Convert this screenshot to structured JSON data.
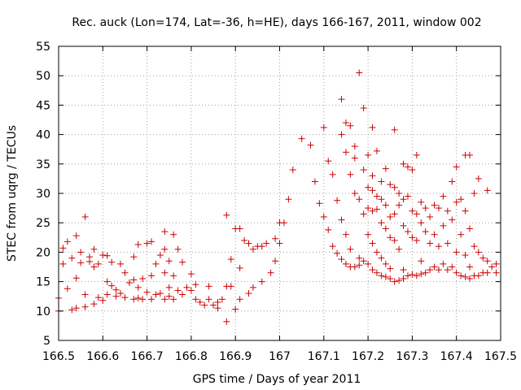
{
  "chart_data": {
    "type": "scatter",
    "title": "Rec. auck (Lon=174, Lat=-36, h=HE), days 166-167, 2011, window 002",
    "xlabel": "GPS time / Days of year 2011",
    "ylabel": "STEC from uqrg / TECUs",
    "xlim": [
      166.5,
      167.5
    ],
    "ylim": [
      5,
      55
    ],
    "xticks": [
      "166.5",
      "166.6",
      "166.7",
      "166.8",
      "166.9",
      "167",
      "167.1",
      "167.2",
      "167.3",
      "167.4",
      "167.5"
    ],
    "yticks": [
      "5",
      "10",
      "15",
      "20",
      "25",
      "30",
      "35",
      "40",
      "45",
      "50",
      "55"
    ],
    "grid": true,
    "marker": "+",
    "color": "#cc0000",
    "points": [
      [
        166.5,
        12.2
      ],
      [
        166.5,
        10.0
      ],
      [
        166.51,
        18.0
      ],
      [
        166.51,
        20.7
      ],
      [
        166.52,
        13.8
      ],
      [
        166.52,
        21.8
      ],
      [
        166.53,
        19.0
      ],
      [
        166.53,
        10.2
      ],
      [
        166.54,
        22.8
      ],
      [
        166.54,
        15.6
      ],
      [
        166.54,
        10.5
      ],
      [
        166.55,
        18.2
      ],
      [
        166.55,
        20.0
      ],
      [
        166.56,
        26.0
      ],
      [
        166.56,
        12.8
      ],
      [
        166.56,
        10.7
      ],
      [
        166.57,
        18.4
      ],
      [
        166.57,
        19.2
      ],
      [
        166.58,
        20.5
      ],
      [
        166.58,
        17.5
      ],
      [
        166.58,
        11.2
      ],
      [
        166.59,
        12.3
      ],
      [
        166.59,
        18.0
      ],
      [
        166.6,
        19.5
      ],
      [
        166.6,
        11.8
      ],
      [
        166.61,
        19.4
      ],
      [
        166.61,
        15.0
      ],
      [
        166.61,
        12.8
      ],
      [
        166.62,
        18.3
      ],
      [
        166.62,
        14.3
      ],
      [
        166.63,
        13.6
      ],
      [
        166.63,
        12.5
      ],
      [
        166.64,
        18.0
      ],
      [
        166.64,
        13.0
      ],
      [
        166.65,
        16.5
      ],
      [
        166.65,
        12.3
      ],
      [
        166.66,
        14.8
      ],
      [
        166.67,
        19.2
      ],
      [
        166.67,
        12.0
      ],
      [
        166.67,
        15.3
      ],
      [
        166.68,
        21.3
      ],
      [
        166.68,
        14.0
      ],
      [
        166.68,
        12.2
      ],
      [
        166.69,
        15.5
      ],
      [
        166.69,
        12.0
      ],
      [
        166.7,
        21.5
      ],
      [
        166.7,
        13.2
      ],
      [
        166.71,
        21.8
      ],
      [
        166.71,
        16.0
      ],
      [
        166.71,
        12.0
      ],
      [
        166.72,
        18.0
      ],
      [
        166.72,
        12.8
      ],
      [
        166.73,
        19.5
      ],
      [
        166.73,
        13.0
      ],
      [
        166.74,
        20.5
      ],
      [
        166.74,
        23.5
      ],
      [
        166.74,
        16.5
      ],
      [
        166.74,
        12.0
      ],
      [
        166.75,
        18.5
      ],
      [
        166.75,
        14.0
      ],
      [
        166.75,
        12.5
      ],
      [
        166.76,
        23.0
      ],
      [
        166.76,
        16.0
      ],
      [
        166.76,
        12.0
      ],
      [
        166.77,
        20.5
      ],
      [
        166.77,
        13.5
      ],
      [
        166.78,
        18.3
      ],
      [
        166.78,
        12.8
      ],
      [
        166.79,
        14.0
      ],
      [
        166.8,
        16.3
      ],
      [
        166.8,
        13.5
      ],
      [
        166.81,
        14.5
      ],
      [
        166.81,
        12.0
      ],
      [
        166.82,
        11.5
      ],
      [
        166.83,
        11.0
      ],
      [
        166.84,
        14.2
      ],
      [
        166.84,
        12.0
      ],
      [
        166.85,
        11.0
      ],
      [
        166.86,
        10.5
      ],
      [
        166.86,
        11.5
      ],
      [
        166.87,
        12.0
      ],
      [
        166.88,
        8.2
      ],
      [
        166.88,
        26.3
      ],
      [
        166.88,
        14.2
      ],
      [
        166.89,
        14.2
      ],
      [
        166.89,
        18.8
      ],
      [
        166.9,
        24.0
      ],
      [
        166.9,
        10.3
      ],
      [
        166.91,
        24.0
      ],
      [
        166.91,
        17.3
      ],
      [
        166.91,
        12.0
      ],
      [
        166.92,
        22.0
      ],
      [
        166.93,
        21.5
      ],
      [
        166.93,
        13.0
      ],
      [
        166.94,
        20.5
      ],
      [
        166.94,
        14.0
      ],
      [
        166.95,
        21.0
      ],
      [
        166.96,
        21.0
      ],
      [
        166.96,
        15.0
      ],
      [
        166.97,
        21.5
      ],
      [
        166.98,
        16.5
      ],
      [
        166.99,
        22.3
      ],
      [
        166.99,
        18.5
      ],
      [
        167.0,
        21.5
      ],
      [
        167.0,
        25.0
      ],
      [
        167.01,
        25.0
      ],
      [
        167.02,
        29.0
      ],
      [
        167.03,
        34.0
      ],
      [
        167.05,
        39.3
      ],
      [
        167.07,
        38.2
      ],
      [
        167.08,
        32.0
      ],
      [
        167.09,
        28.3
      ],
      [
        167.1,
        41.2
      ],
      [
        167.1,
        26.0
      ],
      [
        167.11,
        35.5
      ],
      [
        167.11,
        23.8
      ],
      [
        167.12,
        33.2
      ],
      [
        167.12,
        21.0
      ],
      [
        167.13,
        28.8
      ],
      [
        167.13,
        19.8
      ],
      [
        167.14,
        46.0
      ],
      [
        167.14,
        40.0
      ],
      [
        167.14,
        25.5
      ],
      [
        167.14,
        18.8
      ],
      [
        167.15,
        42.0
      ],
      [
        167.15,
        37.0
      ],
      [
        167.15,
        23.0
      ],
      [
        167.15,
        18.0
      ],
      [
        167.16,
        41.5
      ],
      [
        167.16,
        33.2
      ],
      [
        167.16,
        20.5
      ],
      [
        167.16,
        17.5
      ],
      [
        167.17,
        38.0
      ],
      [
        167.17,
        36.0
      ],
      [
        167.17,
        30.0
      ],
      [
        167.17,
        17.5
      ],
      [
        167.18,
        50.5
      ],
      [
        167.18,
        29.0
      ],
      [
        167.18,
        19.0
      ],
      [
        167.18,
        17.8
      ],
      [
        167.19,
        44.5
      ],
      [
        167.19,
        34.0
      ],
      [
        167.19,
        26.5
      ],
      [
        167.19,
        18.5
      ],
      [
        167.2,
        36.5
      ],
      [
        167.2,
        31.0
      ],
      [
        167.2,
        27.5
      ],
      [
        167.2,
        23.0
      ],
      [
        167.2,
        18.0
      ],
      [
        167.21,
        41.2
      ],
      [
        167.21,
        33.0
      ],
      [
        167.21,
        30.5
      ],
      [
        167.21,
        27.0
      ],
      [
        167.21,
        21.5
      ],
      [
        167.21,
        17.0
      ],
      [
        167.22,
        37.2
      ],
      [
        167.22,
        29.5
      ],
      [
        167.22,
        27.3
      ],
      [
        167.22,
        20.0
      ],
      [
        167.22,
        16.5
      ],
      [
        167.23,
        32.0
      ],
      [
        167.23,
        29.0
      ],
      [
        167.23,
        25.0
      ],
      [
        167.23,
        19.0
      ],
      [
        167.23,
        16.0
      ],
      [
        167.24,
        34.2
      ],
      [
        167.24,
        28.0
      ],
      [
        167.24,
        24.0
      ],
      [
        167.24,
        18.0
      ],
      [
        167.24,
        15.8
      ],
      [
        167.25,
        31.5
      ],
      [
        167.25,
        26.0
      ],
      [
        167.25,
        22.5
      ],
      [
        167.25,
        17.2
      ],
      [
        167.25,
        15.5
      ],
      [
        167.26,
        40.8
      ],
      [
        167.26,
        31.0
      ],
      [
        167.26,
        26.5
      ],
      [
        167.26,
        22.0
      ],
      [
        167.26,
        15.0
      ],
      [
        167.27,
        30.0
      ],
      [
        167.27,
        28.0
      ],
      [
        167.27,
        20.5
      ],
      [
        167.27,
        15.2
      ],
      [
        167.28,
        35.0
      ],
      [
        167.28,
        29.0
      ],
      [
        167.28,
        24.5
      ],
      [
        167.28,
        17.0
      ],
      [
        167.28,
        15.5
      ],
      [
        167.29,
        34.5
      ],
      [
        167.29,
        29.5
      ],
      [
        167.29,
        23.5
      ],
      [
        167.29,
        16.0
      ],
      [
        167.3,
        34.0
      ],
      [
        167.3,
        27.0
      ],
      [
        167.3,
        22.5
      ],
      [
        167.3,
        16.2
      ],
      [
        167.31,
        36.5
      ],
      [
        167.31,
        26.5
      ],
      [
        167.31,
        22.0
      ],
      [
        167.31,
        16.0
      ],
      [
        167.32,
        28.5
      ],
      [
        167.32,
        25.0
      ],
      [
        167.32,
        18.5
      ],
      [
        167.32,
        16.3
      ],
      [
        167.33,
        27.5
      ],
      [
        167.33,
        23.5
      ],
      [
        167.33,
        16.5
      ],
      [
        167.34,
        26.0
      ],
      [
        167.34,
        21.5
      ],
      [
        167.34,
        17.0
      ],
      [
        167.35,
        28.0
      ],
      [
        167.35,
        23.0
      ],
      [
        167.35,
        17.5
      ],
      [
        167.36,
        27.5
      ],
      [
        167.36,
        21.0
      ],
      [
        167.36,
        17.0
      ],
      [
        167.37,
        29.5
      ],
      [
        167.37,
        24.5
      ],
      [
        167.37,
        18.0
      ],
      [
        167.38,
        27.0
      ],
      [
        167.38,
        21.5
      ],
      [
        167.38,
        17.0
      ],
      [
        167.39,
        32.0
      ],
      [
        167.39,
        25.5
      ],
      [
        167.39,
        17.5
      ],
      [
        167.4,
        34.5
      ],
      [
        167.4,
        28.5
      ],
      [
        167.4,
        20.0
      ],
      [
        167.4,
        16.5
      ],
      [
        167.41,
        29.0
      ],
      [
        167.41,
        23.0
      ],
      [
        167.41,
        16.0
      ],
      [
        167.42,
        36.5
      ],
      [
        167.42,
        27.0
      ],
      [
        167.42,
        19.5
      ],
      [
        167.42,
        15.8
      ],
      [
        167.43,
        36.5
      ],
      [
        167.43,
        24.0
      ],
      [
        167.43,
        17.5
      ],
      [
        167.43,
        15.5
      ],
      [
        167.44,
        30.0
      ],
      [
        167.44,
        21.0
      ],
      [
        167.44,
        16.0
      ],
      [
        167.45,
        32.5
      ],
      [
        167.45,
        20.0
      ],
      [
        167.45,
        16.0
      ],
      [
        167.46,
        19.0
      ],
      [
        167.46,
        16.5
      ],
      [
        167.47,
        30.5
      ],
      [
        167.47,
        18.5
      ],
      [
        167.47,
        16.5
      ],
      [
        167.48,
        17.5
      ],
      [
        167.49,
        18.0
      ],
      [
        167.49,
        16.5
      ]
    ]
  }
}
